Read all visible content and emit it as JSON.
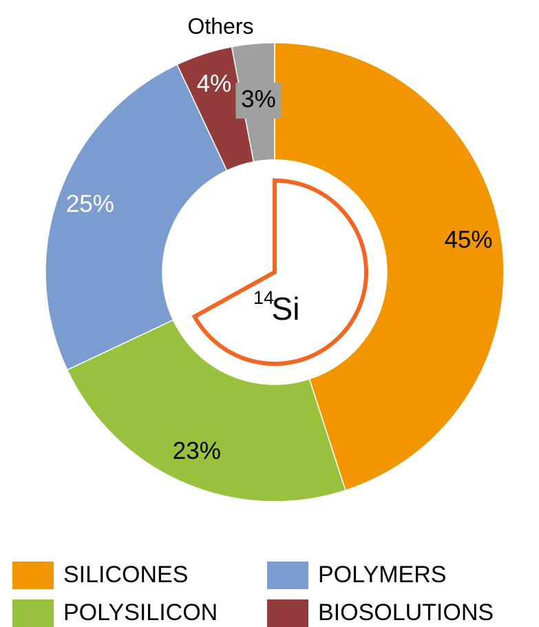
{
  "chart_data": {
    "type": "donut",
    "categories": [
      "SILICONES",
      "POLYSILICON",
      "POLYMERS",
      "BIOSOLUTIONS",
      "Others"
    ],
    "values": [
      45,
      23,
      25,
      4,
      3
    ],
    "value_labels": [
      "45%",
      "23%",
      "25%",
      "4%",
      "3%"
    ],
    "colors": [
      "#f29600",
      "#98c13d",
      "#7a9ccf",
      "#943c3b",
      "#a0a0a0"
    ],
    "value_label_colors": [
      "#000000",
      "#000000",
      "#ffffff",
      "#ffffff",
      "#000000"
    ],
    "legend_entries": [
      0,
      1,
      2,
      3
    ],
    "center_text": {
      "superscript": "14",
      "symbol": "Si"
    }
  }
}
